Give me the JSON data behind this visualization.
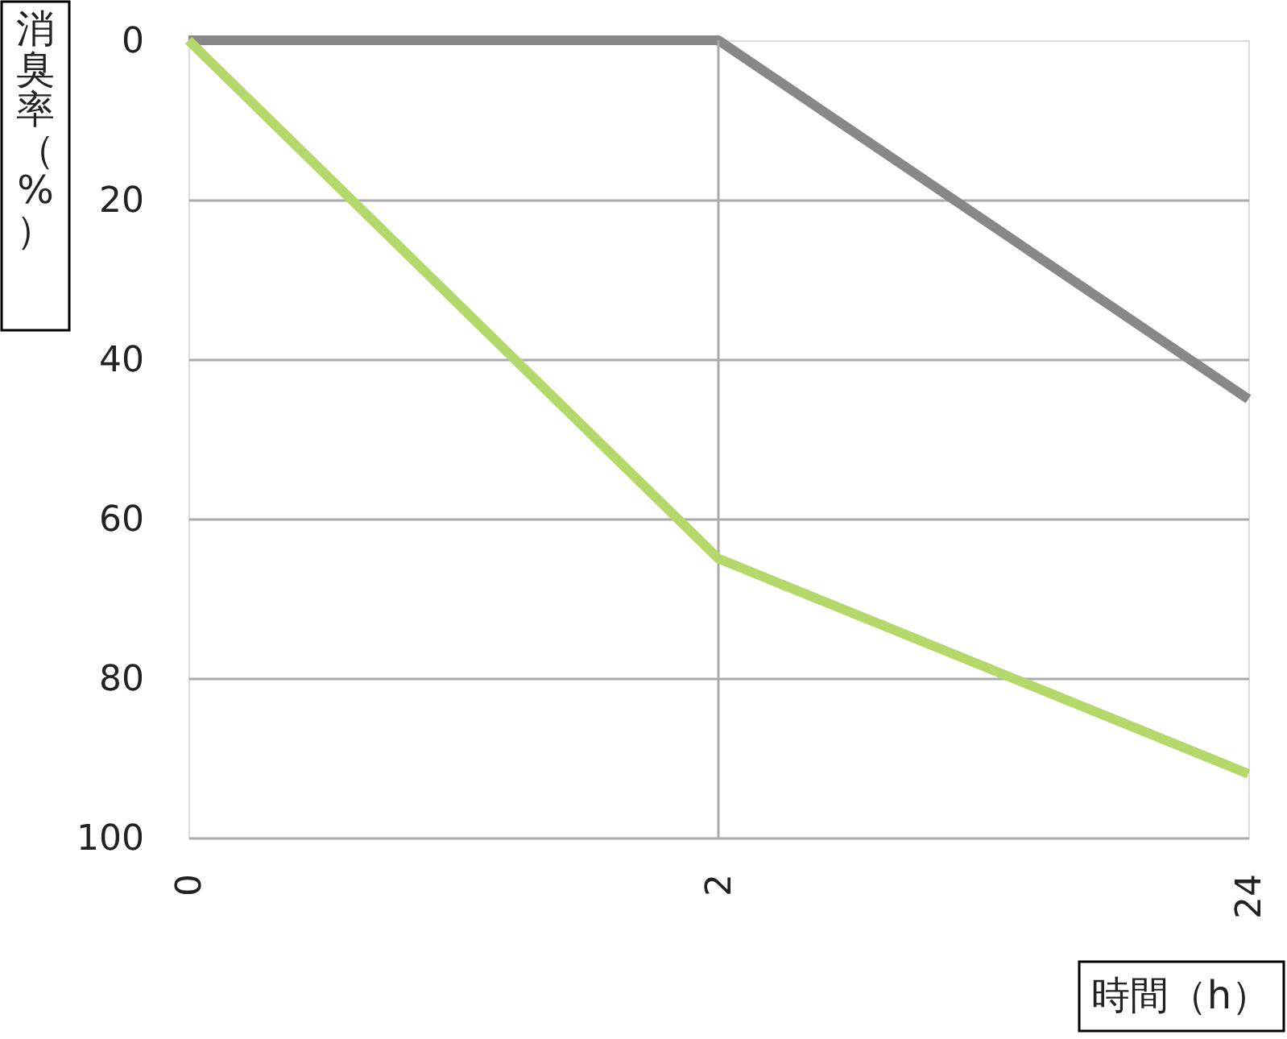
{
  "chart_data": {
    "type": "line",
    "xlabel": "時間（h）",
    "ylabel": "消臭率（%）",
    "categories": [
      "0",
      "2",
      "24"
    ],
    "series": [
      {
        "color": "#888888",
        "values": [
          0,
          0,
          45
        ]
      },
      {
        "color": "#b5d86a",
        "values": [
          0,
          65,
          92
        ]
      }
    ],
    "ylim": [
      100,
      0
    ],
    "yticks": [
      0,
      20,
      40,
      60,
      80,
      100
    ],
    "grid": "y",
    "ref_lines": [
      {
        "axis": "x",
        "value": "2",
        "color": "#aaaaaa"
      }
    ]
  }
}
